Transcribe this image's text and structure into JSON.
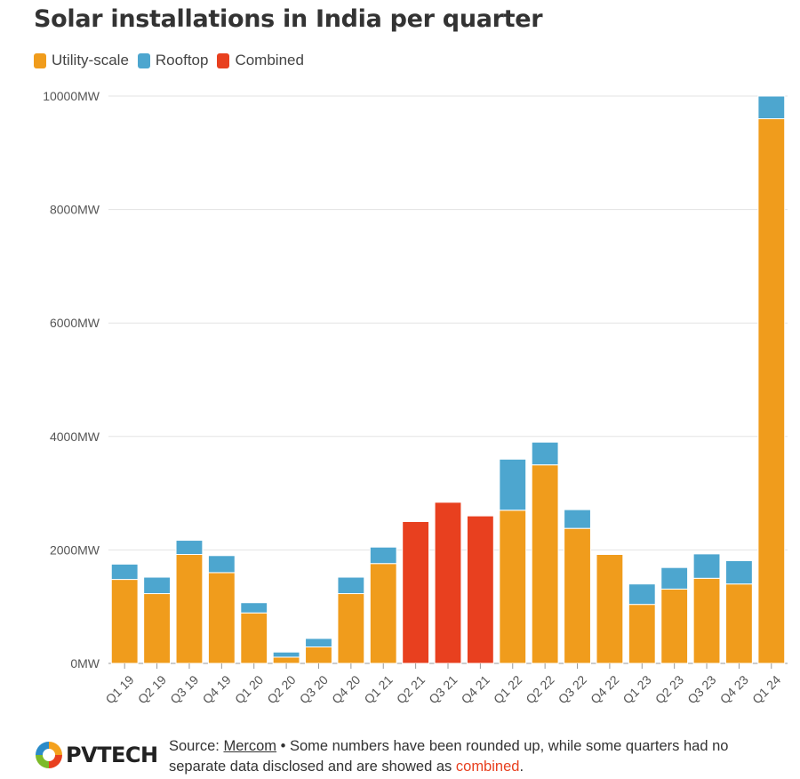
{
  "chart_data": {
    "type": "bar",
    "stacked": true,
    "title": "Solar installations in India per quarter",
    "xlabel": "",
    "ylabel": "",
    "ylim": [
      0,
      10000
    ],
    "yticks": [
      "0MW",
      "2000MW",
      "4000MW",
      "6000MW",
      "8000MW",
      "10000MW"
    ],
    "ytick_values": [
      0,
      2000,
      4000,
      6000,
      8000,
      10000
    ],
    "grid": true,
    "legend": "top-left",
    "categories": [
      "Q1 19",
      "Q2 19",
      "Q3 19",
      "Q4 19",
      "Q1 20",
      "Q2 20",
      "Q3 20",
      "Q4 20",
      "Q1 21",
      "Q2 21",
      "Q3 21",
      "Q4 21",
      "Q1 22",
      "Q2 22",
      "Q3 22",
      "Q4 22",
      "Q1 23",
      "Q2 23",
      "Q3 23",
      "Q4 23",
      "Q1 24"
    ],
    "series": [
      {
        "name": "Utility-scale",
        "color": "#f09c1c",
        "values": [
          1480,
          1230,
          1920,
          1600,
          890,
          110,
          290,
          1230,
          1760,
          0,
          0,
          0,
          2700,
          3500,
          2380,
          1920,
          1040,
          1310,
          1500,
          1400,
          9600
        ]
      },
      {
        "name": "Rooftop",
        "color": "#4da6cf",
        "values": [
          270,
          290,
          250,
          300,
          180,
          90,
          150,
          290,
          290,
          0,
          0,
          0,
          900,
          400,
          330,
          0,
          360,
          380,
          430,
          410,
          400
        ]
      },
      {
        "name": "Combined",
        "color": "#e8401f",
        "values": [
          0,
          0,
          0,
          0,
          0,
          0,
          0,
          0,
          0,
          2500,
          2840,
          2600,
          0,
          0,
          0,
          0,
          0,
          0,
          0,
          0,
          0
        ]
      }
    ]
  },
  "footer": {
    "logo_text": "PVTECH",
    "source_prefix": "Source: ",
    "source_link": "Mercom",
    "source_note": " • Some numbers have been rounded up, while some quarters had no separate data disclosed and are showed as ",
    "combined_word": "combined",
    "period": "."
  }
}
